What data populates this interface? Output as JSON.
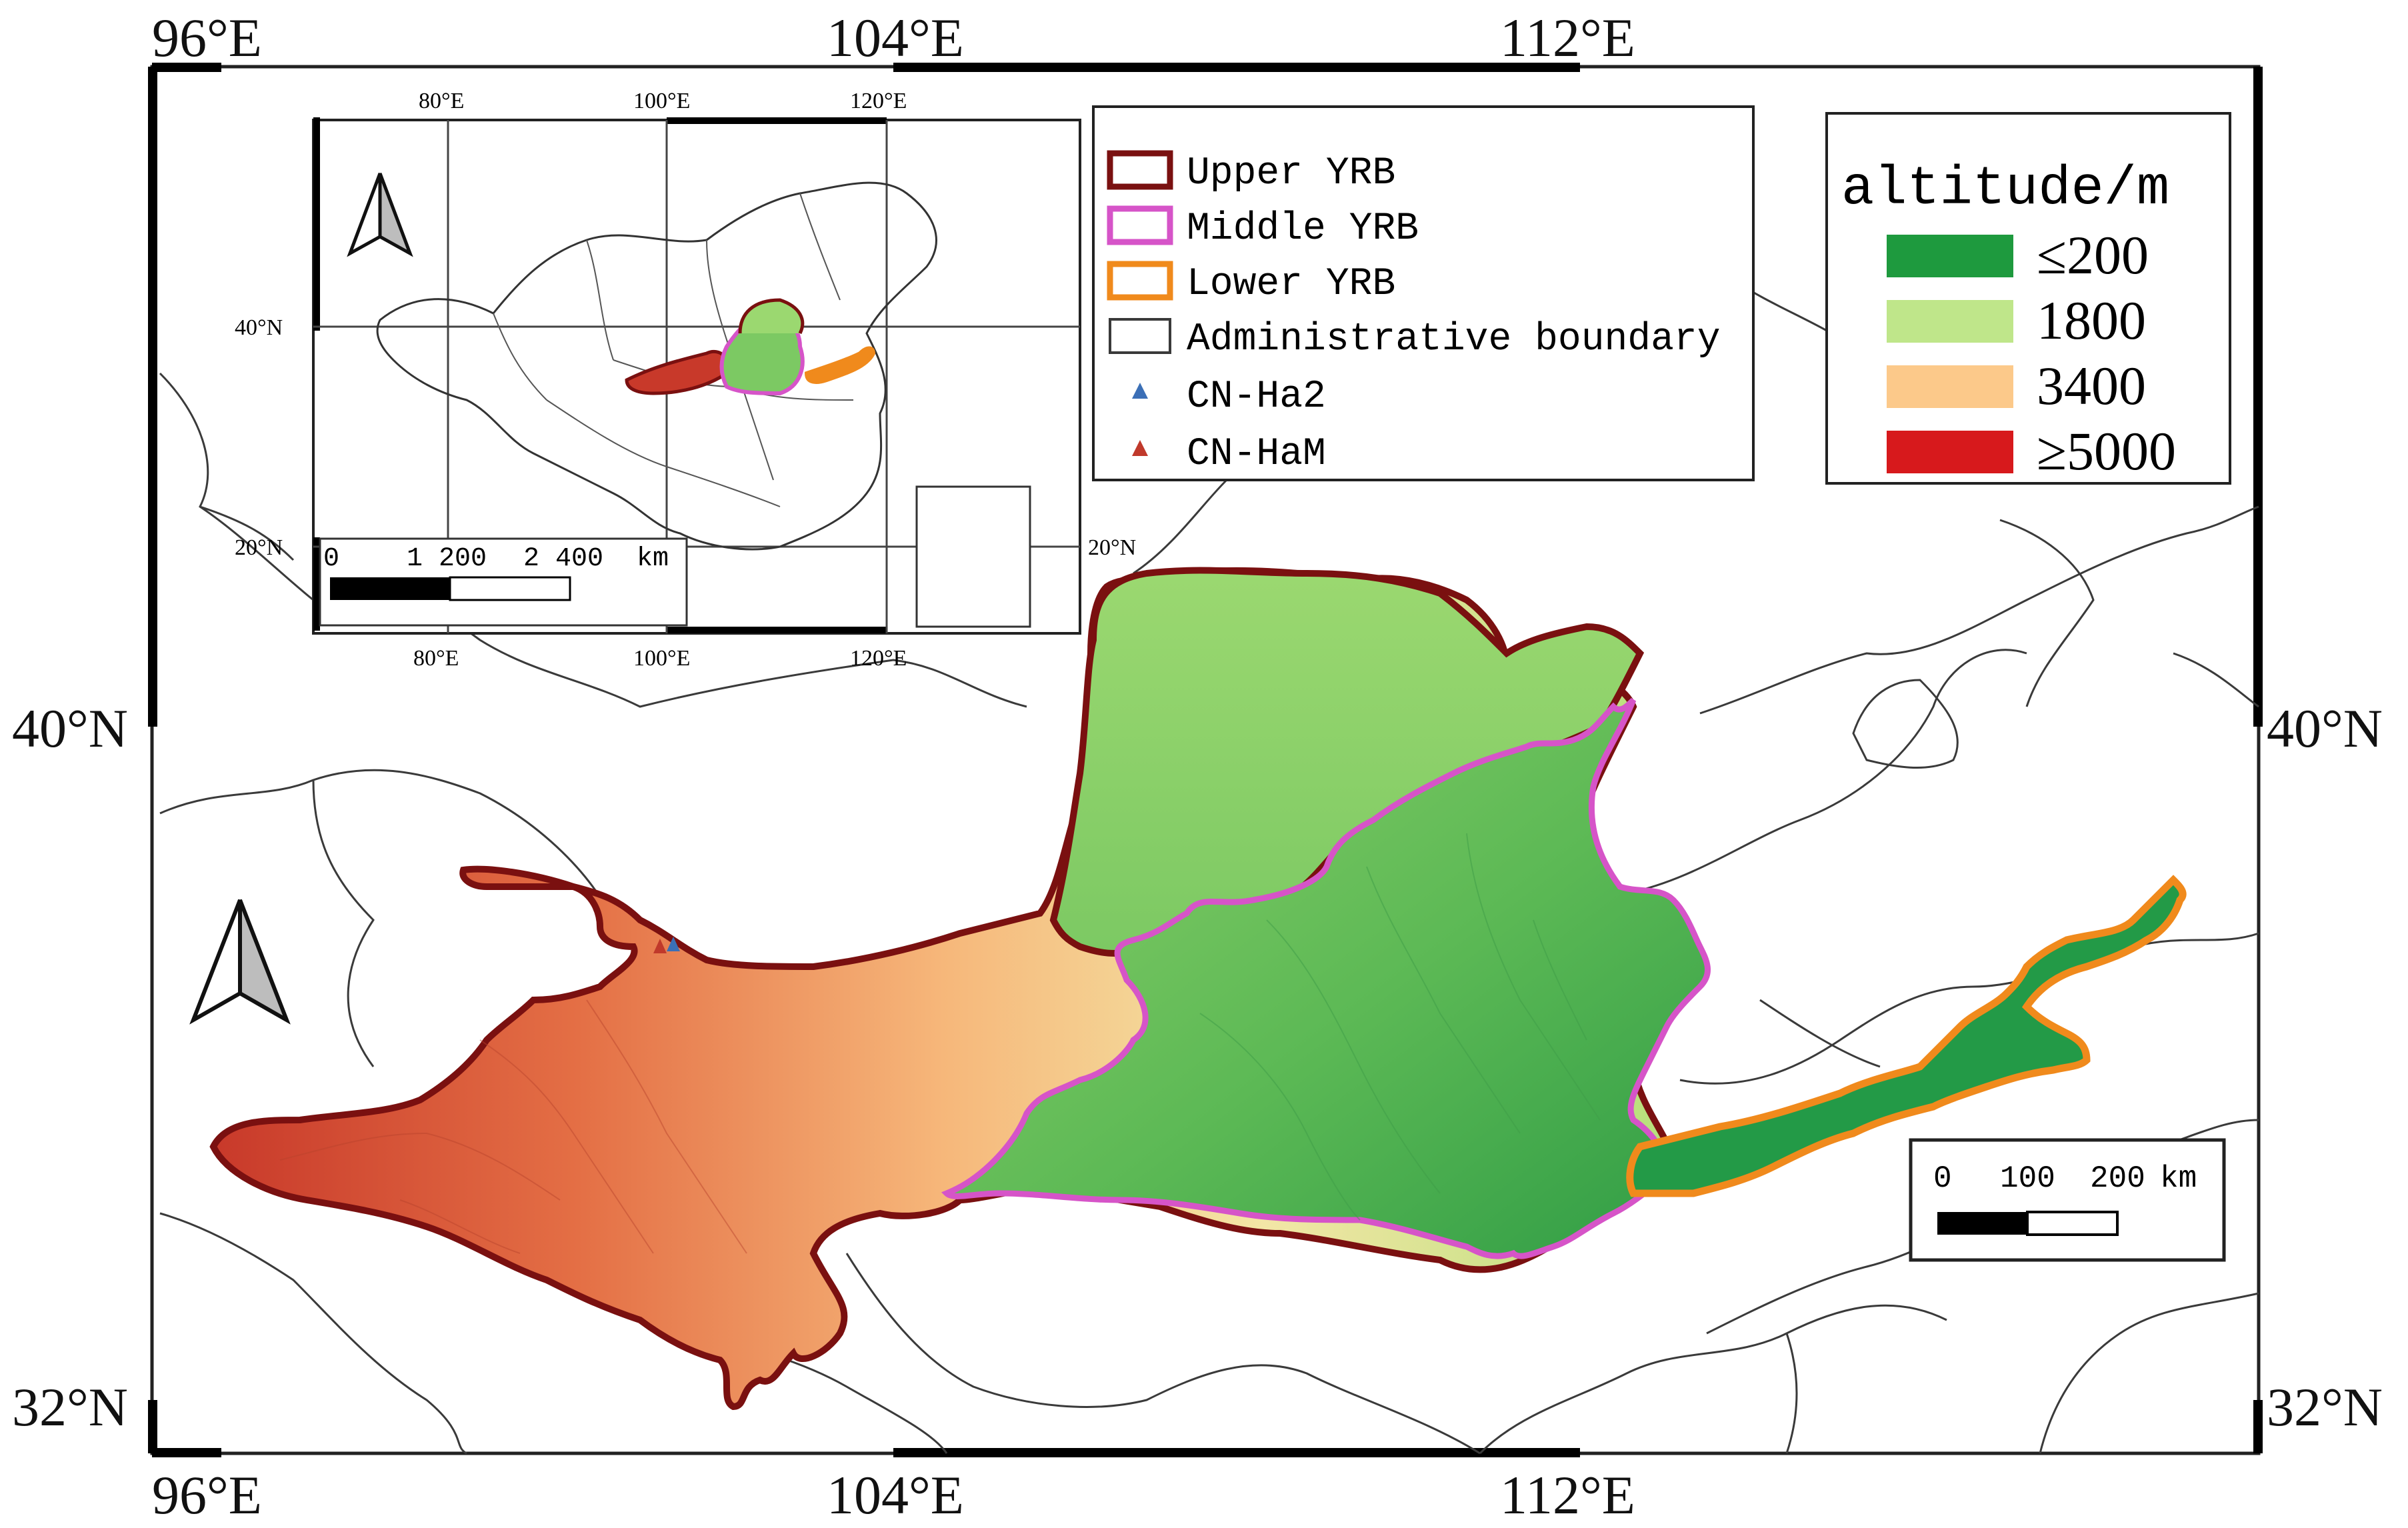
{
  "main_map": {
    "lon_labels_top": [
      "96°E",
      "104°E",
      "112°E"
    ],
    "lon_labels_bottom": [
      "96°E",
      "104°E",
      "112°E"
    ],
    "lat_labels_left": [
      "40°N",
      "32°N"
    ],
    "lat_labels_right": [
      "40°N",
      "32°N"
    ],
    "north_arrow_icon": "north-arrow-icon",
    "scale_bar": {
      "labels": [
        "0",
        "100",
        "200",
        "km"
      ]
    }
  },
  "inset_map": {
    "lon_labels_top": [
      "80°E",
      "100°E",
      "120°E"
    ],
    "lon_labels_bottom": [
      "80°E",
      "100°E",
      "120°E"
    ],
    "lat_labels": [
      "40°N",
      "20°N"
    ],
    "lat_label_right": "20°N",
    "scale_bar": {
      "labels": [
        "0",
        "1 200",
        "2 400",
        "km"
      ]
    }
  },
  "boundary_legend": {
    "items": [
      {
        "label": "Upper YRB",
        "color": "#7a1010"
      },
      {
        "label": "Middle YRB",
        "color": "#d654c8"
      },
      {
        "label": "Lower YRB",
        "color": "#f08a1c"
      },
      {
        "label": "Administrative boundary",
        "color": "#3a3a3a"
      },
      {
        "label": "CN-Ha2",
        "color": "#3b6fb6",
        "icon": "triangle-icon"
      },
      {
        "label": "CN-HaM",
        "color": "#c0392b",
        "icon": "triangle-icon"
      }
    ]
  },
  "altitude_legend": {
    "title": "altitude/m",
    "items": [
      {
        "label": "≤200",
        "color": "#1e9a3e"
      },
      {
        "label": "1800",
        "color": "#bfe68a"
      },
      {
        "label": "3400",
        "color": "#fcc98a"
      },
      {
        "label": "≥5000",
        "color": "#d7191c"
      }
    ]
  },
  "colors": {
    "upper": "#7a1010",
    "middle": "#d654c8",
    "lower": "#f08a1c",
    "admin": "#3a3a3a"
  }
}
